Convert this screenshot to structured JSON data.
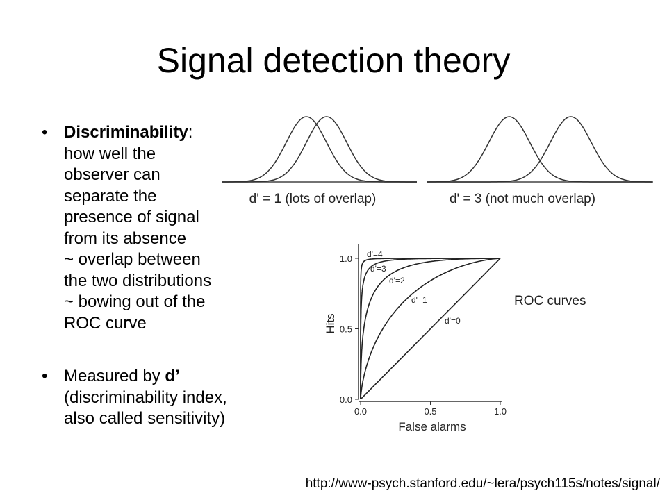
{
  "title": "Signal detection theory",
  "bullets": [
    {
      "lines": [
        [
          {
            "text": "Discriminability",
            "bold": true
          },
          {
            "text": ":"
          }
        ],
        [
          {
            "text": "how well the"
          }
        ],
        [
          {
            "text": "observer can"
          }
        ],
        [
          {
            "text": "separate the"
          }
        ],
        [
          {
            "text": "presence of signal"
          }
        ],
        [
          {
            "text": "from its absence"
          }
        ],
        [
          {
            "text": "~ overlap between"
          }
        ],
        [
          {
            "text": "the two distributions"
          }
        ],
        [
          {
            "text": "~ bowing out of the"
          }
        ],
        [
          {
            "text": "ROC curve"
          }
        ]
      ]
    },
    {
      "lines": [
        [
          {
            "text": "Measured by "
          },
          {
            "text": "d’",
            "bold": true
          }
        ],
        [
          {
            "text": "(discriminability index,"
          }
        ],
        [
          {
            "text": "also called sensitivity)"
          }
        ]
      ]
    }
  ],
  "distributions": [
    {
      "d": 1,
      "label": "d' = 1 (lots of overlap)"
    },
    {
      "d": 3,
      "label": "d' = 3 (not much overlap)"
    }
  ],
  "roc": {
    "title": "ROC curves",
    "xlabel": "False alarms",
    "ylabel": "Hits",
    "xticks": [
      {
        "value": 0,
        "label": "0.0"
      },
      0.5,
      {
        "value": 1,
        "label": "1.0"
      }
    ],
    "yticks": [
      {
        "value": 0,
        "label": "0.0"
      },
      0.5,
      {
        "value": 1,
        "label": "1.0"
      }
    ],
    "curves": [
      {
        "d": 4,
        "label": "d'=4"
      },
      {
        "d": 3,
        "label": "d'=3"
      },
      {
        "d": 2,
        "label": "d'=2"
      },
      {
        "d": 1,
        "label": "d'=1"
      },
      {
        "d": 0,
        "label": "d'=0"
      }
    ]
  },
  "footer": "http://www-psych.stanford.edu/~lera/psych115s/notes/signal/"
}
